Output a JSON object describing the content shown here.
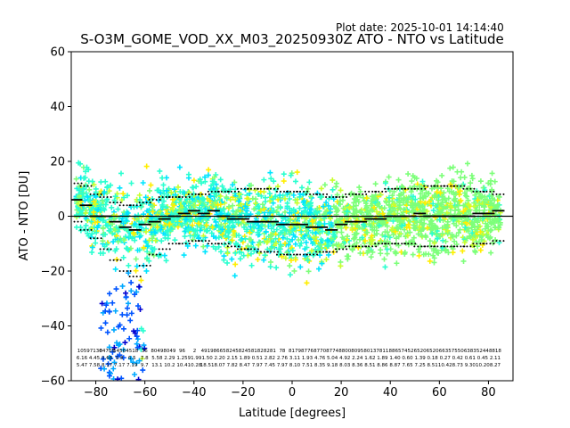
{
  "plot_date": "Plot date: 2025-10-01 14:14:40",
  "chart_data": {
    "type": "scatter",
    "title": "S-O3M_GOME_VOD_XX_M03_20250930Z ATO - NTO vs Latitude",
    "xlabel": "Latitude [degrees]",
    "ylabel": "ATO - NTO [DU]",
    "xlim": [
      -90,
      90
    ],
    "ylim": [
      -60,
      60
    ],
    "xticks": [
      -80,
      -60,
      -40,
      -20,
      0,
      20,
      40,
      60,
      80
    ],
    "yticks": [
      -60,
      -40,
      -20,
      0,
      20,
      40,
      60
    ],
    "zero_line": 0,
    "grid": false,
    "legend": "none",
    "point_colors": [
      "#00e5ff",
      "#2bffd0",
      "#7dff7a",
      "#c8ff2f",
      "#ffee00",
      "#ffc000",
      "#00a8ff",
      "#0055ff",
      "#0000d0"
    ],
    "band_bins": {
      "lat": [
        -88,
        -84,
        -80,
        -76,
        -72,
        -68,
        -64,
        -60,
        -56,
        -52,
        -48,
        -44,
        -40,
        -36,
        -32,
        -28,
        -24,
        -20,
        -16,
        -12,
        -8,
        -4,
        0,
        4,
        8,
        12,
        16,
        20,
        24,
        28,
        32,
        36,
        40,
        44,
        48,
        52,
        56,
        60,
        64,
        68,
        72,
        76,
        80,
        84
      ],
      "mean": [
        6,
        4,
        0,
        0,
        -2,
        -4,
        -5,
        -3,
        -2,
        -1,
        0,
        1,
        2,
        1,
        2,
        0,
        -1,
        -1,
        -2,
        -2,
        -2,
        -3,
        -3,
        -3,
        -4,
        -4,
        -5,
        -3,
        -2,
        -2,
        -1,
        -1,
        0,
        0,
        0,
        1,
        0,
        0,
        0,
        0,
        0,
        1,
        1,
        2
      ],
      "upper": [
        12,
        11,
        8,
        7,
        5,
        4,
        4,
        5,
        6,
        7,
        7,
        7,
        8,
        8,
        9,
        9,
        9,
        10,
        10,
        10,
        10,
        9,
        9,
        9,
        8,
        8,
        7,
        7,
        8,
        8,
        9,
        9,
        10,
        10,
        10,
        10,
        11,
        11,
        11,
        11,
        10,
        9,
        9,
        8
      ],
      "lower": [
        -2,
        -5,
        -8,
        -12,
        -16,
        -20,
        -22,
        -18,
        -14,
        -12,
        -10,
        -10,
        -9,
        -9,
        -10,
        -10,
        -11,
        -12,
        -12,
        -13,
        -13,
        -14,
        -14,
        -14,
        -14,
        -13,
        -13,
        -12,
        -11,
        -11,
        -11,
        -10,
        -10,
        -10,
        -10,
        -11,
        -11,
        -11,
        -11,
        -11,
        -11,
        -10,
        -10,
        -9
      ]
    },
    "bin_stats_columns": [
      {
        "count": "105",
        "mean": "6.16",
        "std": "5.47"
      },
      {
        "count": "97130",
        "mean": "4.45",
        "std": "7.58"
      },
      {
        "count": "84705",
        "mean": "0.68",
        "std": "8.17"
      },
      {
        "count": "5456",
        "mean": "0.8",
        "std": "7.17"
      },
      {
        "count": "4518",
        "mean": "6.5",
        "std": "7.19"
      },
      {
        "count": "36",
        "mean": "7.8",
        "std": "9.7"
      },
      {
        "count": "8049",
        "mean": "5.58",
        "std": "13.1"
      },
      {
        "count": "8049",
        "mean": "2.29",
        "std": "10.2"
      },
      {
        "count": "96",
        "mean": "1.25",
        "std": "10.4"
      },
      {
        "count": "2",
        "mean": "91.99",
        "std": "10.28"
      },
      {
        "count": "4919",
        "mean": "1.50",
        "std": "18.51"
      },
      {
        "count": "8665",
        "mean": "2.20",
        "std": "8.07"
      },
      {
        "count": "8245",
        "mean": "2.15",
        "std": "7.82"
      },
      {
        "count": "8245",
        "mean": "1.89",
        "std": "8.47"
      },
      {
        "count": "8182",
        "mean": "0.51",
        "std": "7.97"
      },
      {
        "count": "8281",
        "mean": "2.82",
        "std": "7.45"
      },
      {
        "count": "78",
        "mean": "2.76",
        "std": "7.97"
      },
      {
        "count": "8179",
        "mean": "3.11",
        "std": "8.10"
      },
      {
        "count": "8776",
        "mean": "1.93",
        "std": "7.51"
      },
      {
        "count": "8770",
        "mean": "4.76",
        "std": "8.35"
      },
      {
        "count": "8774",
        "mean": "5.04",
        "std": "9.18"
      },
      {
        "count": "8800",
        "mean": "4.92",
        "std": "8.03"
      },
      {
        "count": "8095",
        "mean": "2.24",
        "std": "8.36"
      },
      {
        "count": "8013",
        "mean": "1.62",
        "std": "8.51"
      },
      {
        "count": "7811",
        "mean": "1.89",
        "std": "8.86"
      },
      {
        "count": "8865",
        "mean": "1.40",
        "std": "8.87"
      },
      {
        "count": "7452",
        "mean": "0.60",
        "std": "7.65"
      },
      {
        "count": "6520",
        "mean": "1.39",
        "std": "7.25"
      },
      {
        "count": "6520",
        "mean": "0.18",
        "std": "8.51"
      },
      {
        "count": "6635",
        "mean": "0.27",
        "std": "10.42"
      },
      {
        "count": "7550",
        "mean": "0.42",
        "std": "8.73"
      },
      {
        "count": "6383",
        "mean": "0.61",
        "std": "9.30"
      },
      {
        "count": "5244",
        "mean": "0.45",
        "std": "10.20"
      },
      {
        "count": "8818",
        "mean": "2.11",
        "std": "8.27"
      }
    ]
  }
}
